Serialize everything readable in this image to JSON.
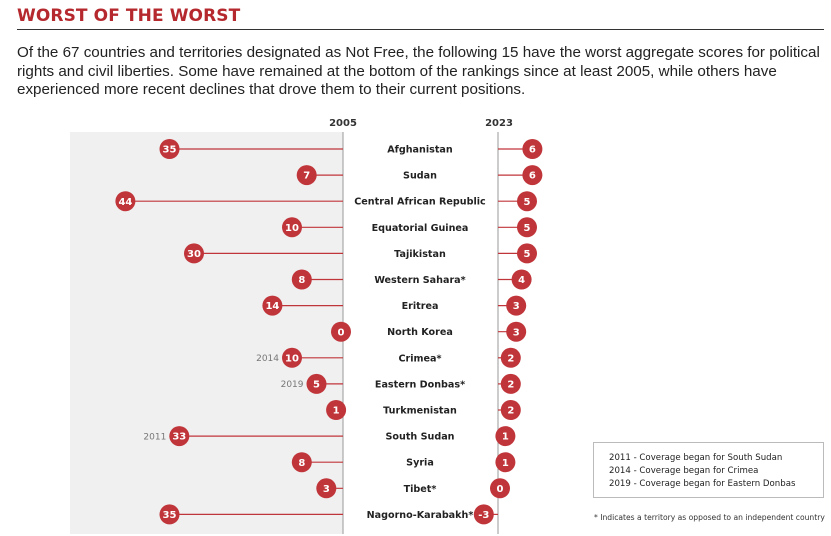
{
  "heading": "WORST OF THE WORST",
  "intro": "Of the 67 countries and territories designated as Not Free, the following 15 have the worst aggregate scores for political rights and civil liberties. Some have remained at the bottom of the rankings since at least 2005, while others have experienced more recent declines that drove them to their current positions.",
  "colors": {
    "accent": "#b5282d",
    "marker": "#c0353a",
    "line": "#c0353a",
    "band": "#f0f0f0"
  },
  "legend": {
    "items": [
      "2011 - Coverage began for South Sudan",
      "2014 - Coverage began for Crimea",
      "2019 - Coverage began for Eastern Donbas"
    ]
  },
  "footnote": "* Indicates a territory as opposed to an independent country",
  "chart_data": {
    "type": "dot",
    "title": "",
    "columns": [
      "2005",
      "2023"
    ],
    "xlim": [
      0,
      44
    ],
    "rows": [
      {
        "country": "Afghanistan",
        "start": 35,
        "end": 6,
        "start_year": ""
      },
      {
        "country": "Sudan",
        "start": 7,
        "end": 6,
        "start_year": ""
      },
      {
        "country": "Central African Republic",
        "start": 44,
        "end": 5,
        "start_year": ""
      },
      {
        "country": "Equatorial Guinea",
        "start": 10,
        "end": 5,
        "start_year": ""
      },
      {
        "country": "Tajikistan",
        "start": 30,
        "end": 5,
        "start_year": ""
      },
      {
        "country": "Western Sahara*",
        "start": 8,
        "end": 4,
        "start_year": ""
      },
      {
        "country": "Eritrea",
        "start": 14,
        "end": 3,
        "start_year": ""
      },
      {
        "country": "North Korea",
        "start": 0,
        "end": 3,
        "start_year": ""
      },
      {
        "country": "Crimea*",
        "start": 10,
        "end": 2,
        "start_year": "2014"
      },
      {
        "country": "Eastern Donbas*",
        "start": 5,
        "end": 2,
        "start_year": "2019"
      },
      {
        "country": "Turkmenistan",
        "start": 1,
        "end": 2,
        "start_year": ""
      },
      {
        "country": "South Sudan",
        "start": 33,
        "end": 1,
        "start_year": "2011"
      },
      {
        "country": "Syria",
        "start": 8,
        "end": 1,
        "start_year": ""
      },
      {
        "country": "Tibet*",
        "start": 3,
        "end": 0,
        "start_year": ""
      },
      {
        "country": "Nagorno-Karabakh*",
        "start": 35,
        "end": -3,
        "start_year": ""
      }
    ]
  }
}
